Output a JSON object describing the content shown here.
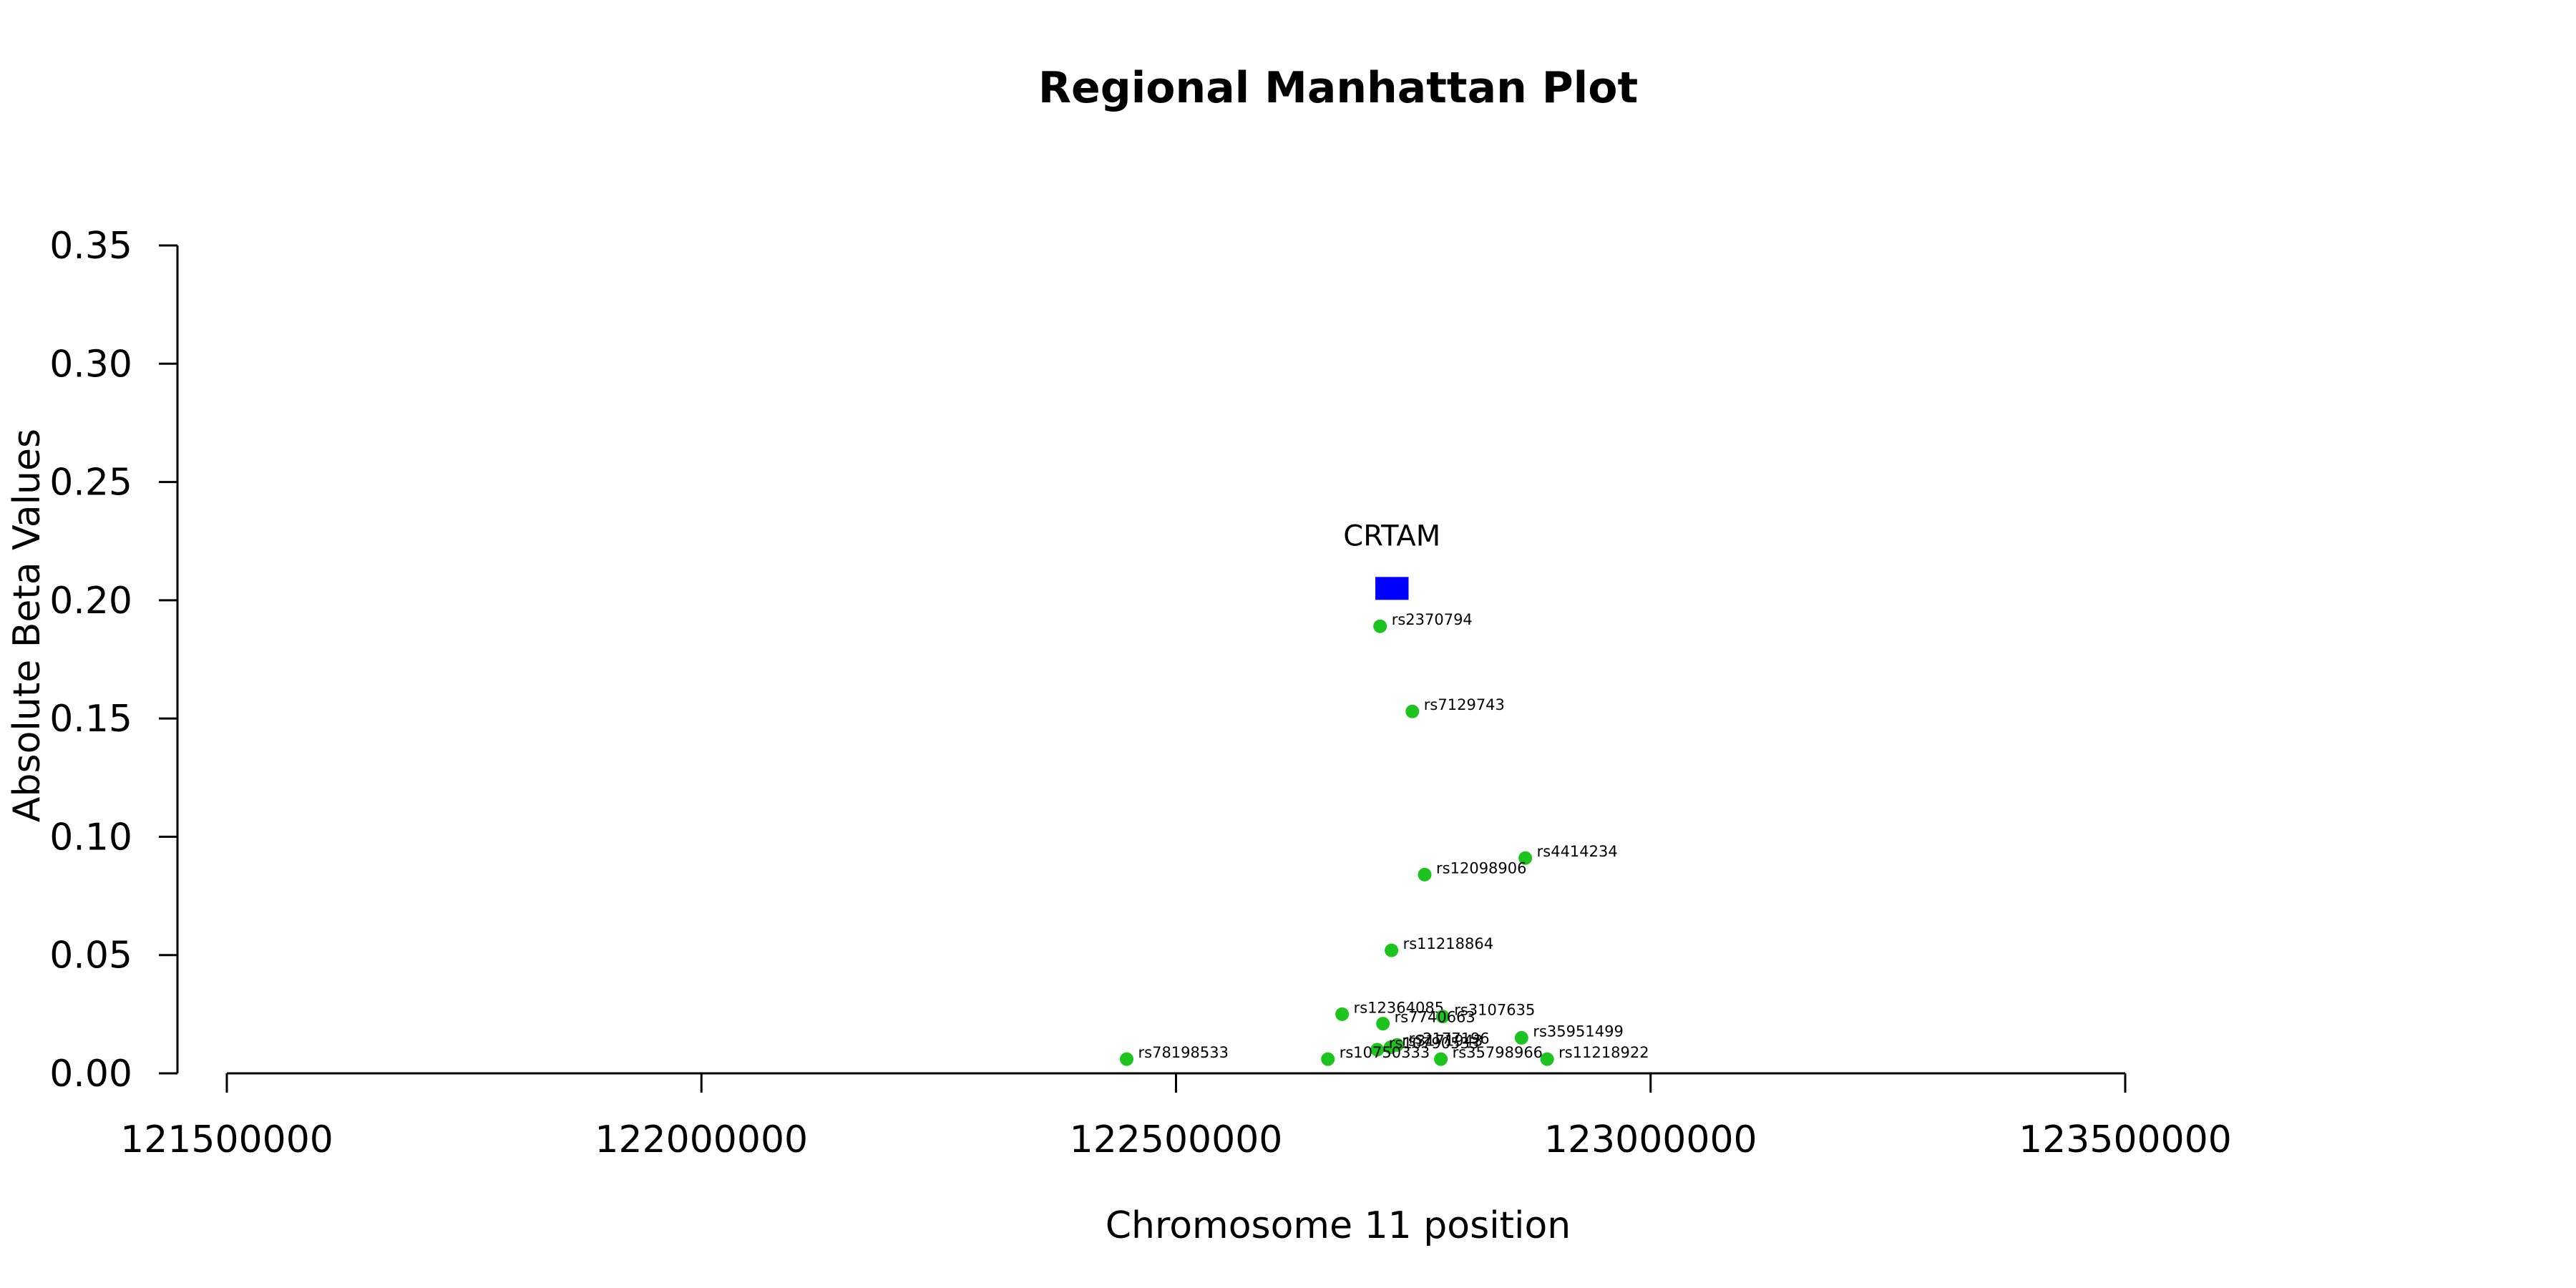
{
  "chart_data": {
    "type": "scatter",
    "title": "Regional Manhattan Plot",
    "xlabel": "Chromosome 11 position",
    "ylabel": "Absolute Beta Values",
    "xlim": [
      121500000,
      123500000
    ],
    "ylim": [
      0,
      0.35
    ],
    "x_ticks": [
      121500000,
      122000000,
      122500000,
      123000000,
      123500000
    ],
    "x_tick_labels": [
      "121500000",
      "122000000",
      "122500000",
      "123000000",
      "123500000"
    ],
    "y_ticks": [
      0,
      0.05,
      0.1,
      0.15,
      0.2,
      0.25,
      0.3,
      0.35
    ],
    "y_tick_labels": [
      "0.00",
      "0.05",
      "0.10",
      "0.15",
      "0.20",
      "0.25",
      "0.30",
      "0.35"
    ],
    "grid": false,
    "legend": "none",
    "colors": {
      "snp": "#1ec41e",
      "gene": "#0000ff"
    },
    "gene": {
      "name": "CRTAM",
      "start": 122710000,
      "end": 122745000,
      "y": 0.205
    },
    "points": [
      {
        "label": "rs2370794",
        "x": 122715000,
        "y": 0.189
      },
      {
        "label": "rs7129743",
        "x": 122749000,
        "y": 0.153
      },
      {
        "label": "rs4414234",
        "x": 122868000,
        "y": 0.091
      },
      {
        "label": "rs12098906",
        "x": 122762000,
        "y": 0.084
      },
      {
        "label": "rs11218864",
        "x": 122727000,
        "y": 0.052
      },
      {
        "label": "rs12364085",
        "x": 122675000,
        "y": 0.025
      },
      {
        "label": "rs3107635",
        "x": 122781000,
        "y": 0.024
      },
      {
        "label": "rs7740663",
        "x": 122718000,
        "y": 0.021
      },
      {
        "label": "rs35951499",
        "x": 122864000,
        "y": 0.015
      },
      {
        "label": "rs2177196",
        "x": 122733000,
        "y": 0.012
      },
      {
        "label": "rs3171943",
        "x": 122726000,
        "y": 0.011
      },
      {
        "label": "rs10790533",
        "x": 122712000,
        "y": 0.01
      },
      {
        "label": "rs10750333",
        "x": 122660000,
        "y": 0.006
      },
      {
        "label": "rs35798966",
        "x": 122779000,
        "y": 0.006
      },
      {
        "label": "rs11218922",
        "x": 122891000,
        "y": 0.006
      },
      {
        "label": "rs78198533",
        "x": 122448000,
        "y": 0.006
      }
    ]
  }
}
